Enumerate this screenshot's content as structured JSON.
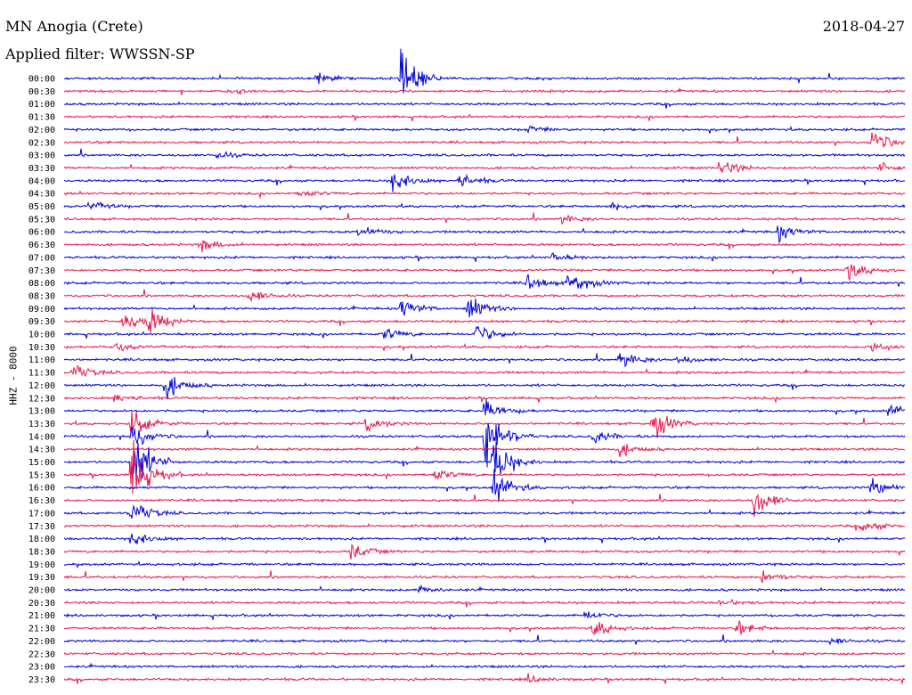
{
  "header": {
    "station": "MN Anogia (Crete)",
    "date": "2018-04-27",
    "filter": "Applied filter: WWSSN-SP",
    "channel": "HHZ - 8000"
  },
  "chart_data": {
    "type": "line",
    "title": "MN Anogia (Crete)",
    "subtitle": "Applied filter: WWSSN-SP",
    "ylabel": "HHZ - 8000",
    "xlabel": "",
    "colors": [
      "#0000dd",
      "#e8174d"
    ],
    "grid": false,
    "rows": [
      {
        "label": "00:00",
        "events": [
          [
            0.4,
            60
          ],
          [
            0.3,
            10
          ]
        ]
      },
      {
        "label": "00:30",
        "events": [
          [
            0.2,
            6
          ]
        ]
      },
      {
        "label": "01:00",
        "events": []
      },
      {
        "label": "01:30",
        "events": []
      },
      {
        "label": "02:00",
        "events": [
          [
            0.55,
            8
          ]
        ]
      },
      {
        "label": "02:30",
        "events": [
          [
            0.96,
            30
          ]
        ]
      },
      {
        "label": "03:00",
        "events": [
          [
            0.18,
            8
          ]
        ]
      },
      {
        "label": "03:30",
        "events": [
          [
            0.78,
            20
          ],
          [
            0.97,
            10
          ]
        ]
      },
      {
        "label": "04:00",
        "events": [
          [
            0.39,
            30
          ],
          [
            0.47,
            15
          ]
        ]
      },
      {
        "label": "04:30",
        "events": [
          [
            0.28,
            10
          ]
        ]
      },
      {
        "label": "05:00",
        "events": [
          [
            0.03,
            10
          ],
          [
            0.65,
            8
          ]
        ]
      },
      {
        "label": "05:30",
        "events": [
          [
            0.59,
            10
          ]
        ]
      },
      {
        "label": "06:00",
        "events": [
          [
            0.35,
            15
          ],
          [
            0.85,
            20
          ]
        ]
      },
      {
        "label": "06:30",
        "events": [
          [
            0.16,
            15
          ]
        ]
      },
      {
        "label": "07:00",
        "events": [
          [
            0.58,
            10
          ]
        ]
      },
      {
        "label": "07:30",
        "events": [
          [
            0.93,
            25
          ]
        ]
      },
      {
        "label": "08:00",
        "events": [
          [
            0.55,
            20
          ],
          [
            0.6,
            30
          ]
        ]
      },
      {
        "label": "08:30",
        "events": [
          [
            0.22,
            15
          ]
        ]
      },
      {
        "label": "09:00",
        "events": [
          [
            0.4,
            25
          ],
          [
            0.48,
            30
          ]
        ]
      },
      {
        "label": "09:30",
        "events": [
          [
            0.07,
            25
          ],
          [
            0.1,
            30
          ]
        ]
      },
      {
        "label": "10:00",
        "events": [
          [
            0.38,
            15
          ],
          [
            0.49,
            25
          ]
        ]
      },
      {
        "label": "10:30",
        "events": [
          [
            0.06,
            10
          ],
          [
            0.96,
            15
          ]
        ]
      },
      {
        "label": "11:00",
        "events": [
          [
            0.66,
            20
          ],
          [
            0.73,
            10
          ]
        ]
      },
      {
        "label": "11:30",
        "events": [
          [
            0.01,
            20
          ]
        ]
      },
      {
        "label": "12:00",
        "events": [
          [
            0.12,
            30
          ]
        ]
      },
      {
        "label": "12:30",
        "events": [
          [
            0.06,
            10
          ]
        ]
      },
      {
        "label": "13:00",
        "events": [
          [
            0.5,
            25
          ],
          [
            0.98,
            15
          ]
        ]
      },
      {
        "label": "13:30",
        "events": [
          [
            0.08,
            30
          ],
          [
            0.7,
            35
          ],
          [
            0.36,
            15
          ]
        ]
      },
      {
        "label": "14:00",
        "events": [
          [
            0.08,
            30
          ],
          [
            0.5,
            80
          ],
          [
            0.63,
            15
          ]
        ]
      },
      {
        "label": "14:30",
        "events": [
          [
            0.66,
            15
          ]
        ]
      },
      {
        "label": "15:00",
        "events": [
          [
            0.51,
            60
          ],
          [
            0.08,
            80
          ]
        ]
      },
      {
        "label": "15:30",
        "events": [
          [
            0.08,
            80
          ],
          [
            0.44,
            15
          ]
        ]
      },
      {
        "label": "16:00",
        "events": [
          [
            0.51,
            40
          ],
          [
            0.96,
            20
          ]
        ]
      },
      {
        "label": "16:30",
        "events": [
          [
            0.82,
            40
          ]
        ]
      },
      {
        "label": "17:00",
        "events": [
          [
            0.08,
            30
          ]
        ]
      },
      {
        "label": "17:30",
        "events": [
          [
            0.95,
            15
          ]
        ]
      },
      {
        "label": "18:00",
        "events": [
          [
            0.08,
            20
          ]
        ]
      },
      {
        "label": "18:30",
        "events": [
          [
            0.34,
            20
          ]
        ]
      },
      {
        "label": "19:00",
        "events": []
      },
      {
        "label": "19:30",
        "events": [
          [
            0.83,
            15
          ]
        ]
      },
      {
        "label": "20:00",
        "events": [
          [
            0.42,
            8
          ]
        ]
      },
      {
        "label": "20:30",
        "events": [
          [
            0.78,
            8
          ]
        ]
      },
      {
        "label": "21:00",
        "events": [
          [
            0.62,
            10
          ]
        ]
      },
      {
        "label": "21:30",
        "events": [
          [
            0.63,
            20
          ],
          [
            0.8,
            15
          ]
        ]
      },
      {
        "label": "22:00",
        "events": [
          [
            0.91,
            8
          ]
        ]
      },
      {
        "label": "22:30",
        "events": []
      },
      {
        "label": "23:00",
        "events": []
      },
      {
        "label": "23:30",
        "events": [
          [
            0.55,
            10
          ]
        ]
      }
    ]
  }
}
